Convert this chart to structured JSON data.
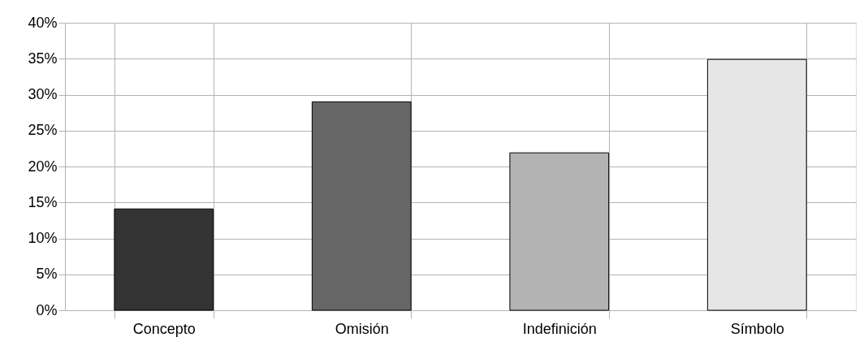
{
  "chart_data": {
    "type": "bar",
    "categories": [
      "Concepto",
      "Omisión",
      "Indefinición",
      "Símbolo"
    ],
    "values": [
      14.1,
      29.0,
      21.9,
      34.9
    ],
    "colors": [
      "#333333",
      "#666666",
      "#b3b3b3",
      "#e6e6e6"
    ],
    "ylim": [
      0,
      40
    ],
    "yticks": [
      {
        "value": 0,
        "label": "0%"
      },
      {
        "value": 5,
        "label": "5%"
      },
      {
        "value": 10,
        "label": "10%"
      },
      {
        "value": 15,
        "label": "15%"
      },
      {
        "value": 20,
        "label": "20%"
      },
      {
        "value": 25,
        "label": "25%"
      },
      {
        "value": 30,
        "label": "30%"
      },
      {
        "value": 35,
        "label": "35%"
      },
      {
        "value": 40,
        "label": "40%"
      }
    ],
    "grid": true,
    "legend": false
  }
}
